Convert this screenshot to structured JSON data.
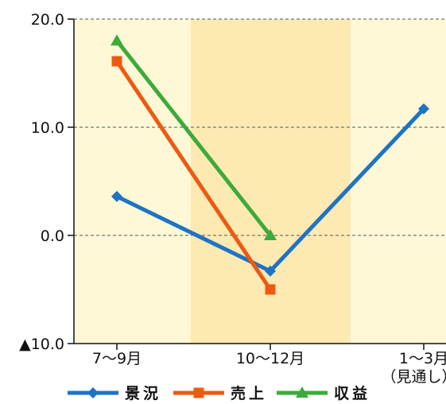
{
  "chart_data": {
    "type": "line",
    "title": "",
    "xlabel": "",
    "ylabel": "",
    "categories": [
      "7～9月",
      "10～12月",
      "1～3月"
    ],
    "category_notes": [
      "",
      "",
      "（見通し）"
    ],
    "ylim": [
      -10,
      20
    ],
    "yticks": [
      20,
      10,
      0,
      -10
    ],
    "ytick_labels": [
      "20.0",
      "10.0",
      "0.0",
      "▲10.0"
    ],
    "grid": "horizontal dashed",
    "shaded_bands": [
      {
        "category": "10～12月",
        "color": "#fde9b2"
      }
    ],
    "plot_background": "#fff8d6",
    "series": [
      {
        "name": "景況",
        "color": "#1f73c4",
        "marker": "diamond",
        "values": [
          3.6,
          -3.3,
          11.7
        ]
      },
      {
        "name": "売上",
        "color": "#ec5a12",
        "marker": "square",
        "values": [
          16.1,
          -5.0,
          null
        ]
      },
      {
        "name": "収益",
        "color": "#3caa3c",
        "marker": "triangle",
        "values": [
          18.0,
          0.0,
          null
        ]
      }
    ],
    "legend": "bottom"
  }
}
